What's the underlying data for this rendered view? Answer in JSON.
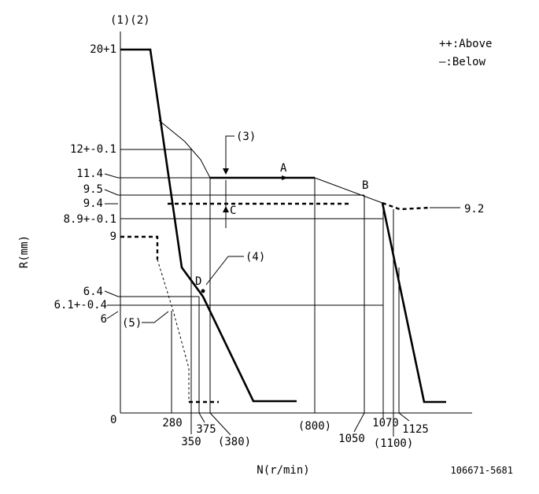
{
  "header": {
    "label": "(1)(2)"
  },
  "legend": {
    "above": "++:Above",
    "below": "—:Below"
  },
  "axes": {
    "y_title": "R(mm)",
    "x_title": "N(r/min)",
    "origin": "0"
  },
  "y_labels": {
    "y20": "20+1",
    "y12": "12+-0.1",
    "y114": "11.4",
    "y95": "9.5",
    "y94": "9.4",
    "y89": "8.9+-0.1",
    "y9": "9",
    "y64": "6.4",
    "y61": "6.1+-0.4",
    "y6": "6"
  },
  "x_labels": {
    "x280": "280",
    "x350": "350",
    "x375": "375",
    "x380": "(380)",
    "x800": "(800)",
    "x1050": "1050",
    "x1070": "1070",
    "x1100": "(1100)",
    "x1125": "1125"
  },
  "callouts": {
    "c3": "(3)",
    "c4": "(4)",
    "c5": "(5)",
    "pA": "A",
    "pB": "B",
    "pC": "C",
    "pD": "D",
    "v92": "9.2"
  },
  "drawing_id": "106671-5681"
}
